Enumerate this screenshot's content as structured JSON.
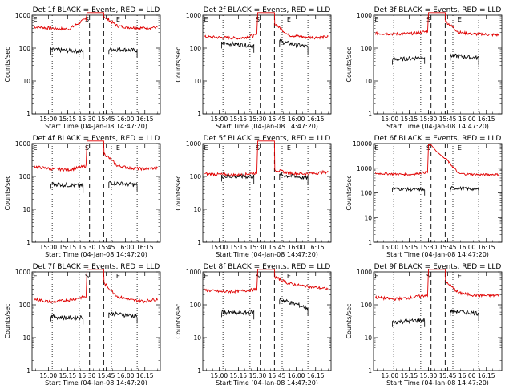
{
  "chart_data": {
    "type": "line",
    "xlabel": "Start Time (04-Jan-08 14:47:20)",
    "ylabel": "Counts/sec",
    "x_ticks": [
      "15:00",
      "15:15",
      "15:30",
      "15:45",
      "16:00",
      "16:15"
    ],
    "x_range": [
      "14:47:20",
      "16:27"
    ],
    "y_scale": "log",
    "markers": {
      "S": "S",
      "E": "E"
    },
    "saa_start": "15:30",
    "saa_end": "15:43",
    "vertical_dotted": [
      "15:03",
      "15:24",
      "15:49",
      "16:09"
    ],
    "vertical_dashed": [
      "15:32",
      "15:43"
    ],
    "series_colors": {
      "events": "#000000",
      "lld": "#e00000"
    },
    "panels": [
      {
        "title": "Det 1f BLACK = Events, RED = LLD",
        "ylim": [
          1,
          1000
        ],
        "y_ticks": [
          "1",
          "10",
          "100",
          "1000"
        ],
        "events": {
          "before": [
            90,
            85,
            80
          ],
          "after": [
            95,
            90,
            85
          ]
        },
        "lld": {
          "before": [
            440,
            400,
            380,
            800
          ],
          "saa_peak": 1200,
          "after": [
            900,
            470,
            420,
            410,
            430
          ]
        }
      },
      {
        "title": "Det 2f BLACK = Events, RED = LLD",
        "ylim": [
          1,
          1000
        ],
        "y_ticks": [
          "1",
          "10",
          "100",
          "1000"
        ],
        "events": {
          "before": [
            140,
            130,
            120
          ],
          "after": [
            160,
            130,
            110
          ]
        },
        "lld": {
          "before": [
            220,
            210,
            200,
            250
          ],
          "saa_peak": 1200,
          "after": [
            550,
            250,
            220,
            210,
            220
          ]
        }
      },
      {
        "title": "Det 3f BLACK = Events, RED = LLD",
        "ylim": [
          1,
          1000
        ],
        "y_ticks": [
          "1",
          "10",
          "100",
          "1000"
        ],
        "events": {
          "before": [
            45,
            48,
            55
          ],
          "after": [
            60,
            55,
            50
          ]
        },
        "lld": {
          "before": [
            280,
            270,
            275,
            320
          ],
          "saa_peak": 1200,
          "after": [
            650,
            300,
            270,
            260,
            250
          ]
        }
      },
      {
        "title": "Det 4f BLACK = Events, RED = LLD",
        "ylim": [
          1,
          1000
        ],
        "y_ticks": [
          "1",
          "10",
          "100",
          "1000"
        ],
        "events": {
          "before": [
            60,
            55,
            52
          ],
          "after": [
            65,
            60,
            55
          ]
        },
        "lld": {
          "before": [
            200,
            170,
            160,
            210
          ],
          "saa_peak": 1200,
          "after": [
            500,
            210,
            180,
            170,
            180
          ]
        }
      },
      {
        "title": "Det 5f BLACK = Events, RED = LLD",
        "ylim": [
          1,
          1000
        ],
        "y_ticks": [
          "1",
          "10",
          "100",
          "1000"
        ],
        "events": {
          "before": [
            100,
            100,
            100
          ],
          "after": [
            110,
            100,
            90
          ]
        },
        "lld": {
          "before": [
            120,
            115,
            110,
            130
          ],
          "saa_peak": 1200,
          "after": [
            160,
            130,
            120,
            125,
            140
          ]
        }
      },
      {
        "title": "Det 6f BLACK = Events, RED = LLD",
        "ylim": [
          1,
          10000
        ],
        "y_ticks": [
          "1",
          "10",
          "100",
          "1000",
          "10000"
        ],
        "events": {
          "before": [
            150,
            140,
            130
          ],
          "after": [
            160,
            150,
            140
          ]
        },
        "lld": {
          "before": [
            620,
            580,
            560,
            700
          ],
          "saa_peak": 9000,
          "after": [
            2500,
            600,
            560,
            550,
            560
          ]
        }
      },
      {
        "title": "Det 7f BLACK = Events, RED = LLD",
        "ylim": [
          1,
          1000
        ],
        "y_ticks": [
          "1",
          "10",
          "100",
          "1000"
        ],
        "events": {
          "before": [
            45,
            40,
            42
          ],
          "after": [
            55,
            50,
            45
          ]
        },
        "lld": {
          "before": [
            150,
            120,
            140,
            180
          ],
          "saa_peak": 1200,
          "after": [
            450,
            180,
            140,
            130,
            150
          ]
        }
      },
      {
        "title": "Det 8f BLACK = Events, RED = LLD",
        "ylim": [
          1,
          1000
        ],
        "y_ticks": [
          "1",
          "10",
          "100",
          "1000"
        ],
        "events": {
          "before": [
            60,
            55,
            60
          ],
          "after": [
            150,
            110,
            80
          ]
        },
        "lld": {
          "before": [
            280,
            250,
            260,
            300
          ],
          "saa_peak": 1200,
          "after": [
            700,
            450,
            380,
            340,
            300
          ]
        }
      },
      {
        "title": "Det 9f BLACK = Events, RED = LLD",
        "ylim": [
          1,
          1000
        ],
        "y_ticks": [
          "1",
          "10",
          "100",
          "1000"
        ],
        "events": {
          "before": [
            30,
            32,
            35
          ],
          "after": [
            65,
            60,
            55
          ]
        },
        "lld": {
          "before": [
            170,
            150,
            165,
            200
          ],
          "saa_peak": 1200,
          "after": [
            500,
            230,
            200,
            190,
            195
          ]
        }
      }
    ]
  }
}
